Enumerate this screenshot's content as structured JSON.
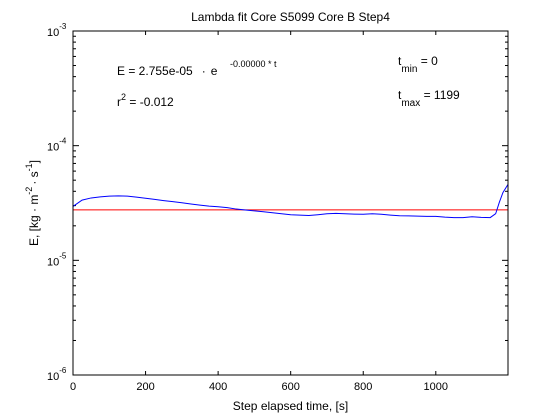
{
  "chart_data": {
    "type": "line",
    "title": "Lambda fit  Core S5099 Core B  Step4",
    "xlabel": "Step elapsed time, [s]",
    "ylabel": {
      "prefix": "E, [kg ",
      "dot1": "·",
      "m": " m",
      "m_exp": "-2",
      "dot2": "·",
      "s": " s",
      "s_exp": "-1",
      "suffix": "]"
    },
    "xlim": [
      0,
      1199
    ],
    "ylim": [
      1e-06,
      0.001
    ],
    "yscale": "log",
    "grid": false,
    "legend": "none",
    "x_ticks": [
      "0",
      "200",
      "400",
      "600",
      "800",
      "1000"
    ],
    "x_tick_values": [
      0,
      200,
      400,
      600,
      800,
      1000
    ],
    "y_ticks": [
      {
        "value": 1e-06,
        "base": "10",
        "exp": "-6"
      },
      {
        "value": 1e-05,
        "base": "10",
        "exp": "-5"
      },
      {
        "value": 0.0001,
        "base": "10",
        "exp": "-4"
      },
      {
        "value": 0.001,
        "base": "10",
        "exp": "-3"
      }
    ],
    "annotations": {
      "equation_lhs": "E = 2.755e-05",
      "equation_dot": "·",
      "equation_e": "e",
      "equation_exp": "-0.00000 * t",
      "r2_base": "r",
      "r2_sup": "2",
      "r2_value": " = -0.012",
      "tmin_base": "t",
      "tmin_sub": "min",
      "tmin_value": " = 0",
      "tmax_base": "t",
      "tmax_sub": "max",
      "tmax_value": " = 1199"
    },
    "series": [
      {
        "color": "#0000ff",
        "x": [
          0,
          25,
          50,
          75,
          100,
          125,
          150,
          175,
          200,
          225,
          250,
          275,
          300,
          325,
          350,
          375,
          400,
          425,
          450,
          475,
          500,
          525,
          550,
          575,
          600,
          625,
          650,
          675,
          700,
          725,
          750,
          775,
          800,
          825,
          850,
          875,
          900,
          925,
          950,
          975,
          1000,
          1025,
          1050,
          1075,
          1100,
          1125,
          1150,
          1165,
          1175,
          1185,
          1199
        ],
        "y": [
          2.95e-05,
          3.35e-05,
          3.5e-05,
          3.58e-05,
          3.63e-05,
          3.65e-05,
          3.63e-05,
          3.56e-05,
          3.48e-05,
          3.4e-05,
          3.32e-05,
          3.25e-05,
          3.18e-05,
          3.1e-05,
          3.03e-05,
          2.97e-05,
          2.93e-05,
          2.88e-05,
          2.8e-05,
          2.75e-05,
          2.7e-05,
          2.65e-05,
          2.6e-05,
          2.55e-05,
          2.5e-05,
          2.48e-05,
          2.46e-05,
          2.5e-05,
          2.55e-05,
          2.57e-05,
          2.55e-05,
          2.53e-05,
          2.52e-05,
          2.55e-05,
          2.52e-05,
          2.48e-05,
          2.45e-05,
          2.44e-05,
          2.43e-05,
          2.42e-05,
          2.42e-05,
          2.38e-05,
          2.36e-05,
          2.36e-05,
          2.4e-05,
          2.37e-05,
          2.36e-05,
          2.55e-05,
          3.2e-05,
          3.9e-05,
          4.6e-05
        ]
      },
      {
        "color": "#ff0000",
        "x": [
          0,
          1199
        ],
        "y": [
          2.755e-05,
          2.755e-05
        ]
      }
    ]
  }
}
